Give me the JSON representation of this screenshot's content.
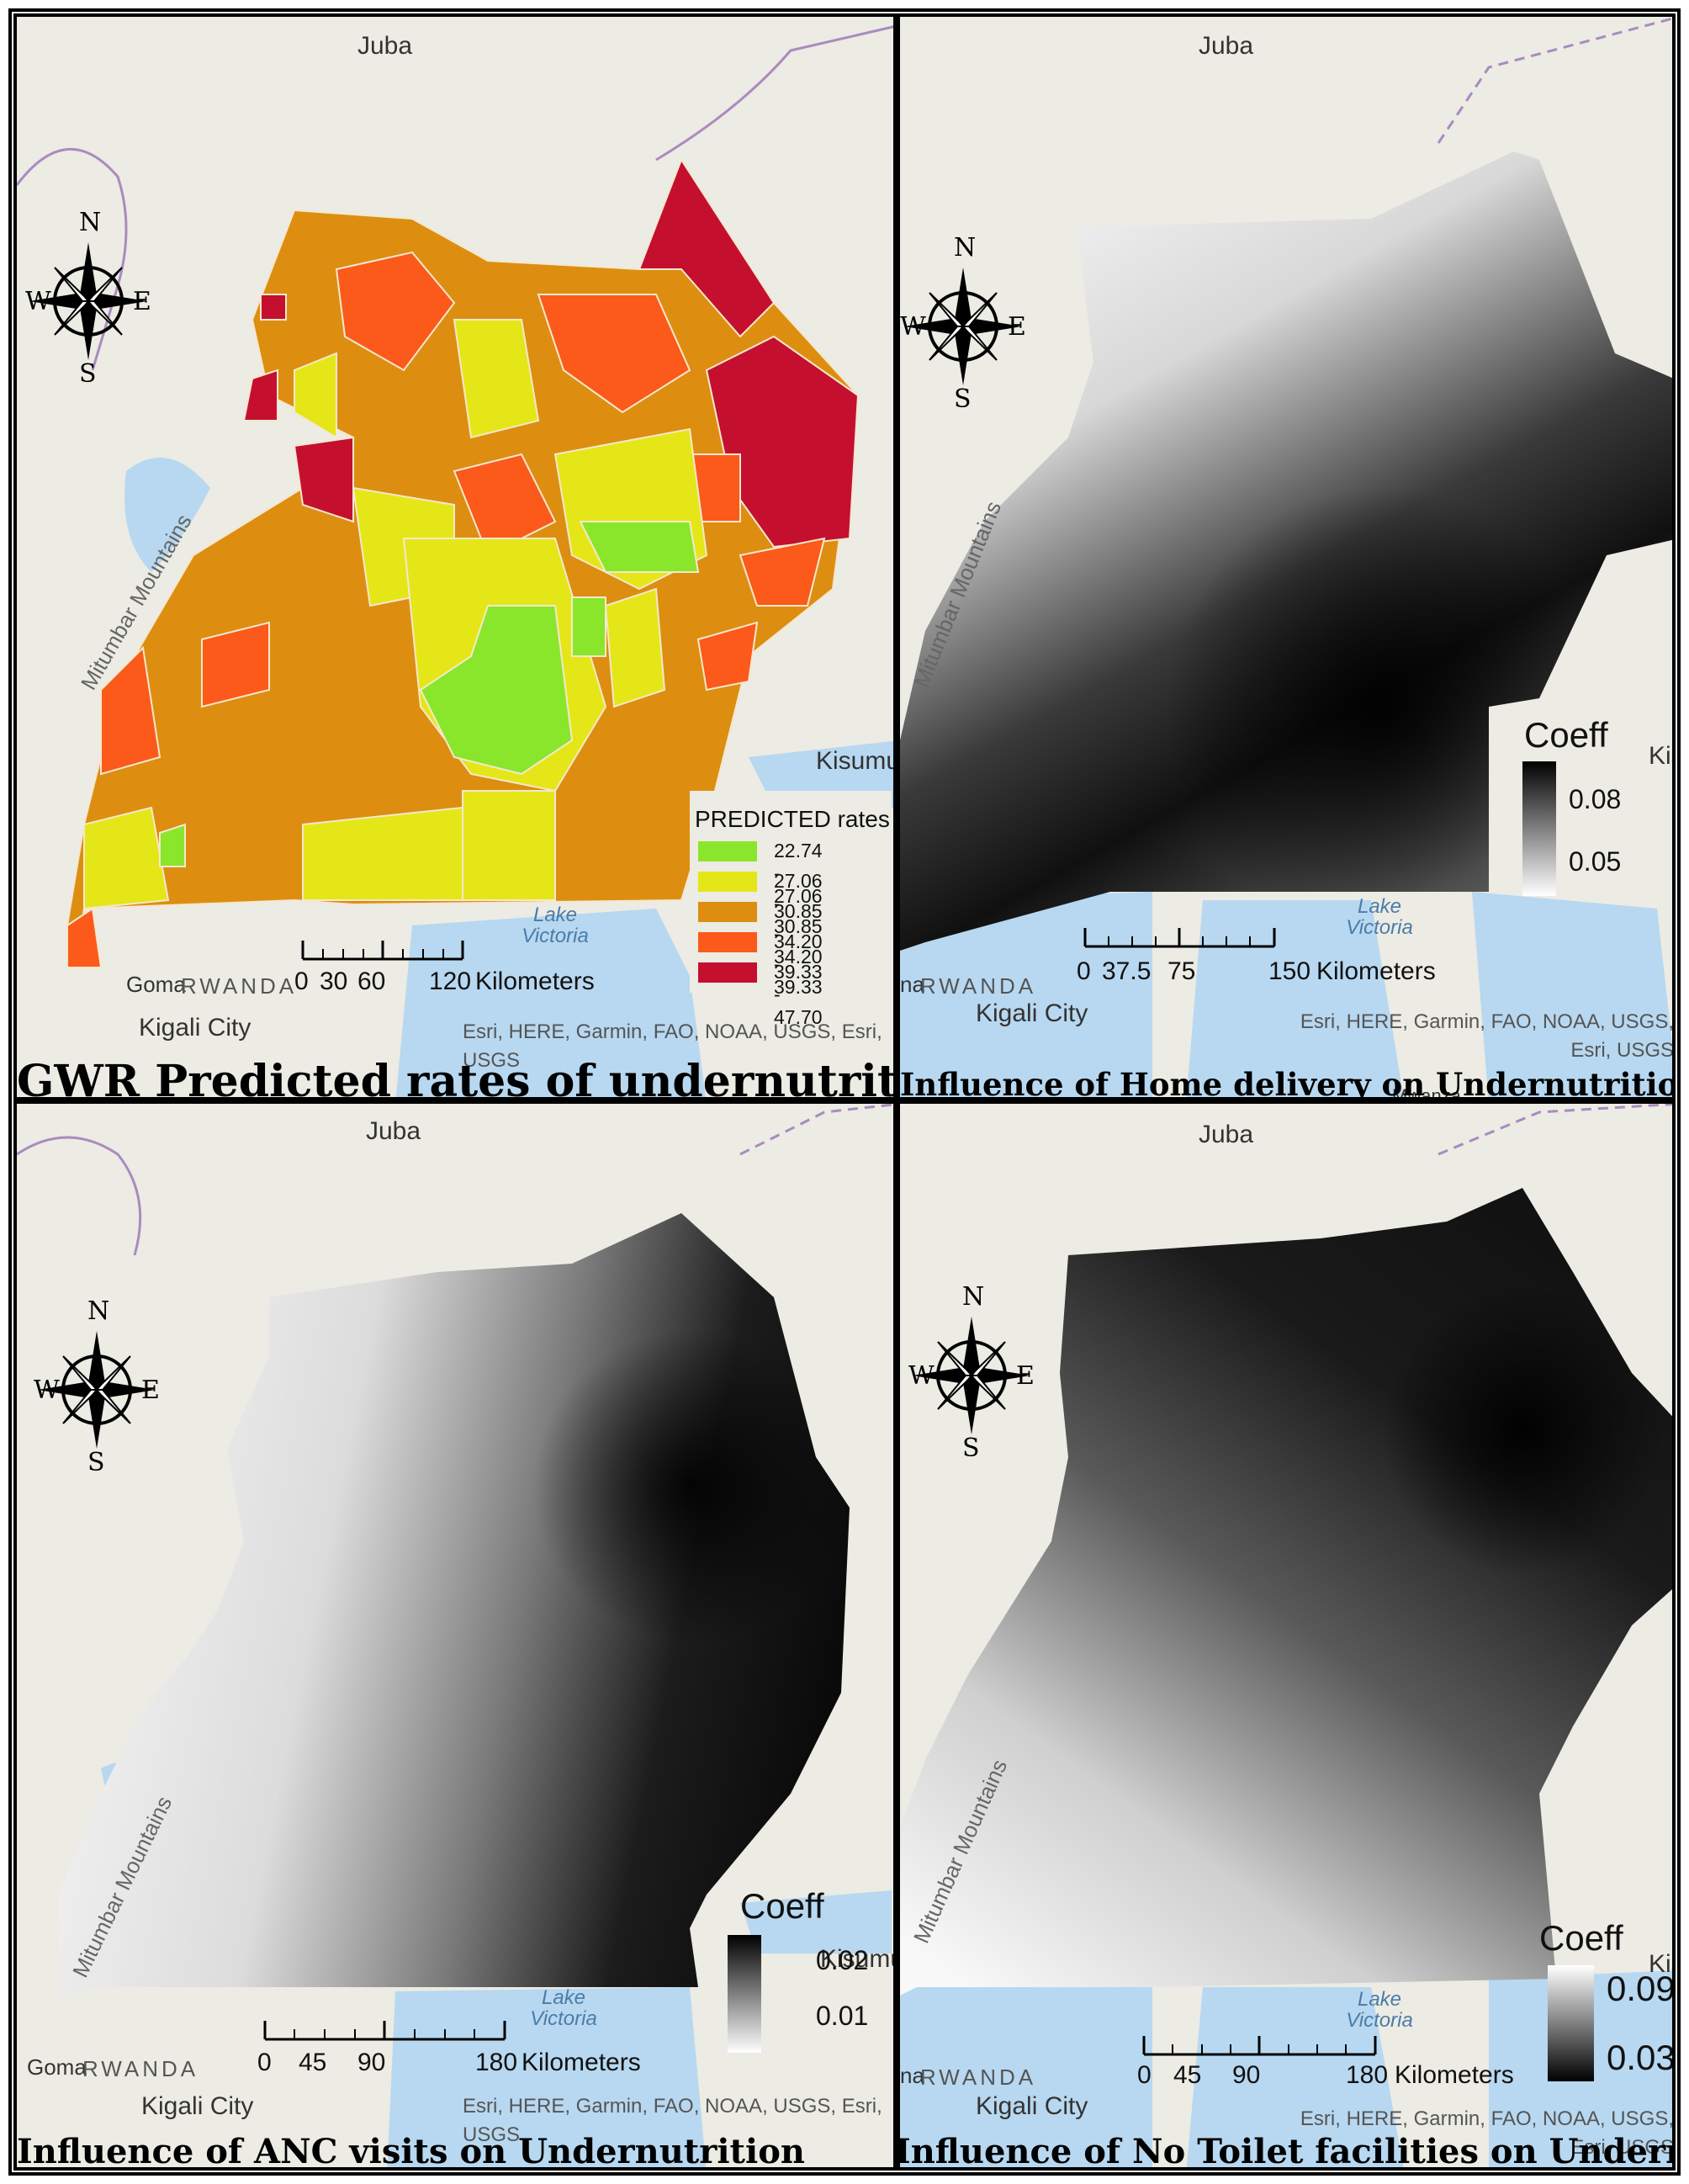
{
  "panels": [
    {
      "id": "panel-1",
      "title": "GWR Predicted rates of undernutrition",
      "legend": {
        "title": "PREDICTED rates",
        "classes": [
          {
            "range": "22.74 - 27.06",
            "color": "#8ae62a"
          },
          {
            "range": "27.06 - 30.85",
            "color": "#e5e617"
          },
          {
            "range": "30.85 - 34.20",
            "color": "#dd8e10"
          },
          {
            "range": "34.20 - 39.33",
            "color": "#fb5a1a"
          },
          {
            "range": "39.33 - 47.70",
            "color": "#c4102e"
          }
        ]
      },
      "scalebar": {
        "ticks": [
          "0",
          "30",
          "60",
          "120"
        ],
        "unit": "Kilometers"
      },
      "places": {
        "juba": "Juba",
        "kisumu": "Kisumu",
        "goma": "Goma",
        "rwanda": "RWANDA",
        "kigali": "Kigali City",
        "mountains": "Mitumbar Mountains",
        "lake": "Lake Victoria"
      },
      "attribution": "Esri, HERE, Garmin, FAO, NOAA, USGS, Esri, USGS",
      "compass": [
        "N",
        "E",
        "S",
        "W"
      ]
    },
    {
      "id": "panel-2",
      "title": "Influence of Home delivery on Undernutrition",
      "legend": {
        "title": "Coeff",
        "high": "0.08",
        "low": "0.05",
        "ramp": "black-top"
      },
      "scalebar": {
        "ticks": [
          "0",
          "37.5",
          "75",
          "150"
        ],
        "unit": "Kilometers"
      },
      "places": {
        "juba": "Juba",
        "kisumu": "Kis",
        "goma": "na",
        "rwanda": "RWANDA",
        "kigali": "Kigali City",
        "mountains": "Mitumbar Mountains",
        "lake": "Lake Victoria",
        "mwanza": "Mwanza"
      },
      "attribution": "Esri, HERE, Garmin, FAO, NOAA, USGS, Esri, USGS",
      "compass": [
        "N",
        "E",
        "S",
        "W"
      ]
    },
    {
      "id": "panel-3",
      "title": "Influence of ANC visits on Undernutrition",
      "legend": {
        "title": "Coeff",
        "high": "0.02",
        "low": "0.01",
        "ramp": "black-top"
      },
      "scalebar": {
        "ticks": [
          "0",
          "45",
          "90",
          "180"
        ],
        "unit": "Kilometers"
      },
      "places": {
        "juba": "Juba",
        "kisumu": "Kisumu",
        "goma": "Goma",
        "rwanda": "RWANDA",
        "kigali": "Kigali City",
        "mountains": "Mitumbar Mountains",
        "lake": "Lake Victoria"
      },
      "attribution": "Esri, HERE, Garmin, FAO, NOAA, USGS, Esri, USGS",
      "compass": [
        "N",
        "E",
        "S",
        "W"
      ]
    },
    {
      "id": "panel-4",
      "title": "Influence of No Toilet facilities on Undernutrition",
      "legend": {
        "title": "Coeff",
        "high": "0.09",
        "low": "0.03",
        "ramp": "white-top"
      },
      "scalebar": {
        "ticks": [
          "0",
          "45",
          "90",
          "180"
        ],
        "unit": "Kilometers"
      },
      "places": {
        "juba": "Juba",
        "kisumu": "Kis",
        "goma": "na",
        "rwanda": "RWANDA",
        "kigali": "Kigali City",
        "mountains": "Mitumbar Mountains",
        "lake": "Lake Victoria"
      },
      "attribution": "Esri, HERE, Garmin, FAO, NOAA, USGS, Esri, USGS",
      "compass": [
        "N",
        "E",
        "S",
        "W"
      ]
    }
  ],
  "colors": {
    "land": "#ecebe4",
    "water": "#b7d8f0",
    "boundary": "#a98bbf"
  }
}
